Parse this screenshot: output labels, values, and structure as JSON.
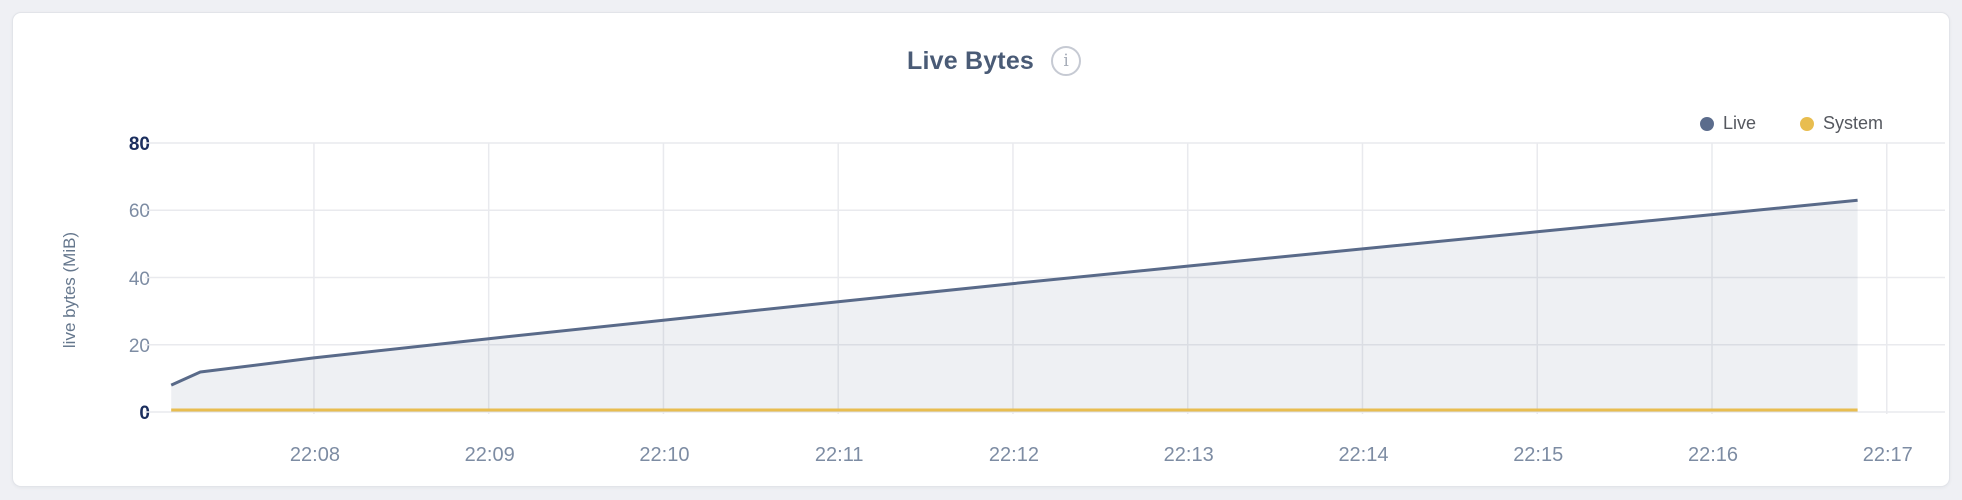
{
  "header": {
    "title": "Live Bytes",
    "info_icon_glyph": "i"
  },
  "legend": {
    "position": "top-right",
    "items": [
      {
        "label": "Live",
        "color": "#5b6c8c"
      },
      {
        "label": "System",
        "color": "#e8bd4f"
      }
    ]
  },
  "colors": {
    "page_background": "#eff0f4",
    "card_background": "#ffffff",
    "card_border": "#e2e4e9",
    "gridline": "#e9eaee",
    "live_line": "#596a89",
    "live_fill": "rgba(90,105,135,0.10)",
    "system_line": "#e8bd4f",
    "tick_label": "#7d8ca3",
    "tick_label_strong": "#1b2e5e",
    "title_text": "#4a5b76"
  },
  "chart_data": {
    "type": "area",
    "title": "Live Bytes",
    "xlabel": "",
    "ylabel": "live bytes (MiB)",
    "grid": true,
    "legend_position": "top-right",
    "ylim": [
      0,
      80
    ],
    "y_ticks": [
      0,
      20,
      40,
      60,
      80
    ],
    "x_ticks": [
      "22:08",
      "22:09",
      "22:10",
      "22:11",
      "22:12",
      "22:13",
      "22:14",
      "22:15",
      "22:16",
      "22:17"
    ],
    "x_domain": [
      "22:07:02",
      "22:17:20"
    ],
    "series": [
      {
        "name": "Live",
        "color": "#596a89",
        "fill": "rgba(90,105,135,0.10)",
        "points": [
          [
            "22:07:11",
            8.0
          ],
          [
            "22:07:21",
            11.9
          ],
          [
            "22:08:00",
            16.1
          ],
          [
            "22:09:00",
            21.8
          ],
          [
            "22:10:00",
            27.3
          ],
          [
            "22:11:00",
            32.8
          ],
          [
            "22:12:00",
            38.2
          ],
          [
            "22:13:00",
            43.4
          ],
          [
            "22:14:00",
            48.5
          ],
          [
            "22:15:00",
            53.6
          ],
          [
            "22:16:00",
            58.7
          ],
          [
            "22:16:50",
            63.0
          ]
        ]
      },
      {
        "name": "System",
        "color": "#e8bd4f",
        "fill": "none",
        "points": [
          [
            "22:07:11",
            0.6
          ],
          [
            "22:16:50",
            0.6
          ]
        ]
      }
    ]
  }
}
